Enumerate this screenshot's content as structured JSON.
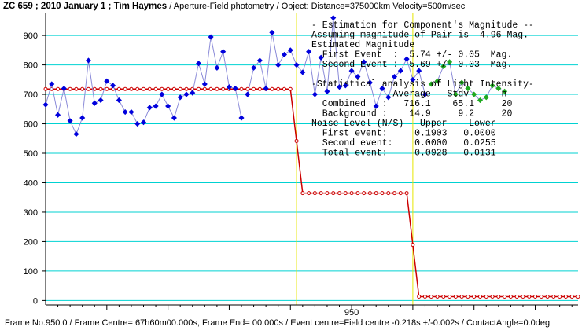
{
  "header": {
    "title": "ZC 659 ; 2010 January 1 ; Tim Haymes",
    "subtitle": "/ Aperture-Field photometry  /  Object: Distance=375000km Velocity=500m/sec"
  },
  "footer": {
    "text": "Frame No.950.0 / Frame Centre= 67h60m00.000s,  Frame End= 00.000s / Event centre=Field centre -0.218s +/-0.002s / ContactAngle=0.0deg"
  },
  "annotations": {
    "lines": [
      "- Estimation for Component's Magnitude --",
      "Assuming magnitude of Pair is  4.96 Mag.",
      "Estimated Magnitude",
      "  First Event  :  5.74 +/- 0.05  Mag.",
      "  Second Event :  5.69 +/- 0.03  Mag.",
      "",
      "-Statistical analysis of Light Intensity-",
      "               Average   Stdv      n",
      "  Combined   :   716.1    65.1     20",
      "  Background :    14.9     9.2     20",
      "Noise Level (N/S)   Upper    Lower",
      "  First event:     0.1903   0.0000",
      "  Second event:    0.0000   0.0255",
      "  Total event:     0.0928   0.0131"
    ]
  },
  "colors": {
    "grid": "#00d2d2",
    "observed_blue": "#0000dd",
    "observed_green": "#1faa1f",
    "model": "#cc0000",
    "event_line": "#e6e600"
  },
  "chart_data": {
    "type": "line",
    "title": "ZC 659 ; 2010 January 1 ; Tim Haymes",
    "xlabel": "",
    "ylabel": "",
    "x_ticks": [
      950
    ],
    "y_ticks": [
      0,
      100,
      200,
      300,
      400,
      500,
      600,
      700,
      800,
      900
    ],
    "xlim": [
      925,
      968.5
    ],
    "ylim": [
      -15,
      975
    ],
    "event_lines_x": [
      945.5,
      955.0
    ],
    "model_levels": [
      718,
      365,
      13
    ],
    "series": [
      {
        "role": "observed-blue",
        "x": [
          925.0,
          925.5,
          926.0,
          926.5,
          927.0,
          927.5,
          928.0,
          928.5,
          929.0,
          929.5,
          930.0,
          930.5,
          931.0,
          931.5,
          932.0,
          932.5,
          933.0,
          933.5,
          934.0,
          934.5,
          935.0,
          935.5,
          936.0,
          936.5,
          937.0,
          937.5,
          938.0,
          938.5,
          939.0,
          939.5,
          940.0,
          940.5,
          941.0
        ],
        "y": [
          665,
          735,
          630,
          720,
          610,
          565,
          620,
          815,
          670,
          680,
          745,
          730,
          680,
          640,
          640,
          600,
          605,
          655,
          660,
          700,
          660,
          620,
          690,
          700,
          705,
          805,
          735,
          895,
          790,
          845,
          725,
          720,
          620
        ]
      },
      {
        "role": "observed-blue",
        "x": [
          941.5,
          942.0,
          942.5,
          943.0,
          943.5,
          944.0,
          944.5,
          945.0,
          945.5,
          946.0,
          946.5,
          947.0,
          947.5,
          948.0,
          948.5,
          949.0,
          949.5,
          950.0,
          950.5,
          951.0,
          951.5,
          952.0,
          952.5,
          953.0,
          953.5,
          954.0,
          954.5,
          955.0,
          955.5,
          956.0
        ],
        "y": [
          700,
          790,
          815,
          720,
          910,
          800,
          835,
          850,
          800,
          775,
          845,
          700,
          825,
          710,
          960,
          725,
          730,
          780,
          760,
          810,
          740,
          660,
          720,
          690,
          760,
          780,
          820,
          750,
          780,
          700
        ]
      },
      {
        "role": "observed-green",
        "x": [
          956.5,
          957.0,
          957.5,
          958.0,
          958.5,
          959.0,
          959.5,
          960.0,
          960.5,
          961.0,
          961.5,
          962.0,
          962.5
        ],
        "y": [
          735,
          745,
          795,
          810,
          700,
          740,
          720,
          700,
          680,
          690,
          730,
          720,
          710
        ]
      }
    ]
  }
}
